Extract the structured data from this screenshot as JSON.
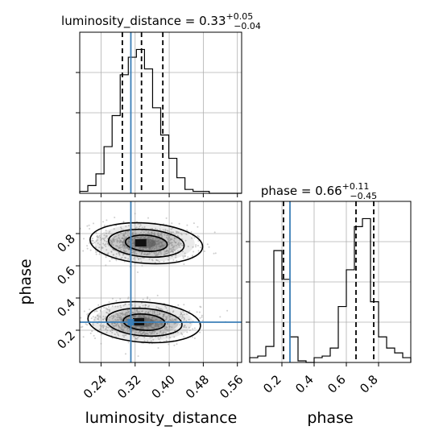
{
  "chart_data": {
    "type": "corner",
    "parameters": [
      "luminosity_distance",
      "phase"
    ],
    "truths": {
      "luminosity_distance": 0.31,
      "phase": 0.25
    },
    "colors": {
      "truth": "#3b7fb8",
      "hist": "#000000",
      "samples": "#9e9e9e",
      "contour_fill": "#555555",
      "grid": "#b0b0b0"
    },
    "panels": {
      "luminosity_distance_hist": {
        "title": {
          "main": "luminosity_distance = 0.33",
          "sup": "+0.05",
          "sub": "−0.04"
        },
        "xlim": [
          0.19,
          0.57
        ],
        "bin_edges": [
          0.19,
          0.209,
          0.228,
          0.247,
          0.266,
          0.285,
          0.304,
          0.323,
          0.342,
          0.361,
          0.38,
          0.399,
          0.418,
          0.437,
          0.456,
          0.475,
          0.494,
          0.513,
          0.532,
          0.551,
          0.57
        ],
        "counts": [
          1,
          4,
          10,
          24,
          40,
          61,
          70,
          74,
          64,
          44,
          30,
          18,
          8,
          2,
          1,
          1,
          0,
          0,
          0,
          0
        ],
        "quantiles": [
          0.29,
          0.335,
          0.385
        ],
        "grid": true
      },
      "phase_hist": {
        "title": {
          "main": "phase = 0.66",
          "sup": "+0.11",
          "sub": "−0.45"
        },
        "xlim": [
          0.0,
          1.0
        ],
        "bin_edges": [
          0.0,
          0.05,
          0.1,
          0.15,
          0.2,
          0.25,
          0.3,
          0.35,
          0.4,
          0.45,
          0.5,
          0.55,
          0.6,
          0.65,
          0.7,
          0.75,
          0.8,
          0.85,
          0.9,
          0.95,
          1.0
        ],
        "counts": [
          3,
          4,
          10,
          70,
          52,
          16,
          1,
          0,
          3,
          4,
          9,
          35,
          58,
          85,
          90,
          38,
          16,
          9,
          6,
          3
        ],
        "quantiles": [
          0.21,
          0.66,
          0.77
        ],
        "grid": true
      },
      "joint": {
        "x": "luminosity_distance",
        "y": "phase",
        "xlim": [
          0.19,
          0.57
        ],
        "ylim": [
          0.0,
          1.0
        ],
        "blobs": [
          {
            "cx": 0.335,
            "cy": 0.74
          },
          {
            "cx": 0.33,
            "cy": 0.25
          }
        ],
        "grid": true
      }
    },
    "x_ticks": {
      "luminosity_distance": [
        "0.24",
        "0.32",
        "0.40",
        "0.48",
        "0.56"
      ],
      "phase": [
        "0.2",
        "0.4",
        "0.6",
        "0.8"
      ]
    },
    "x_tick_values": {
      "luminosity_distance": [
        0.24,
        0.32,
        0.4,
        0.48,
        0.56
      ],
      "phase": [
        0.2,
        0.4,
        0.6,
        0.8
      ]
    },
    "y_ticks": {
      "phase": [
        "0.2",
        "0.4",
        "0.6",
        "0.8"
      ]
    },
    "y_tick_values": {
      "phase": [
        0.2,
        0.4,
        0.6,
        0.8
      ]
    },
    "xlabel_left": "luminosity_distance",
    "xlabel_right": "phase",
    "ylabel": "phase"
  }
}
